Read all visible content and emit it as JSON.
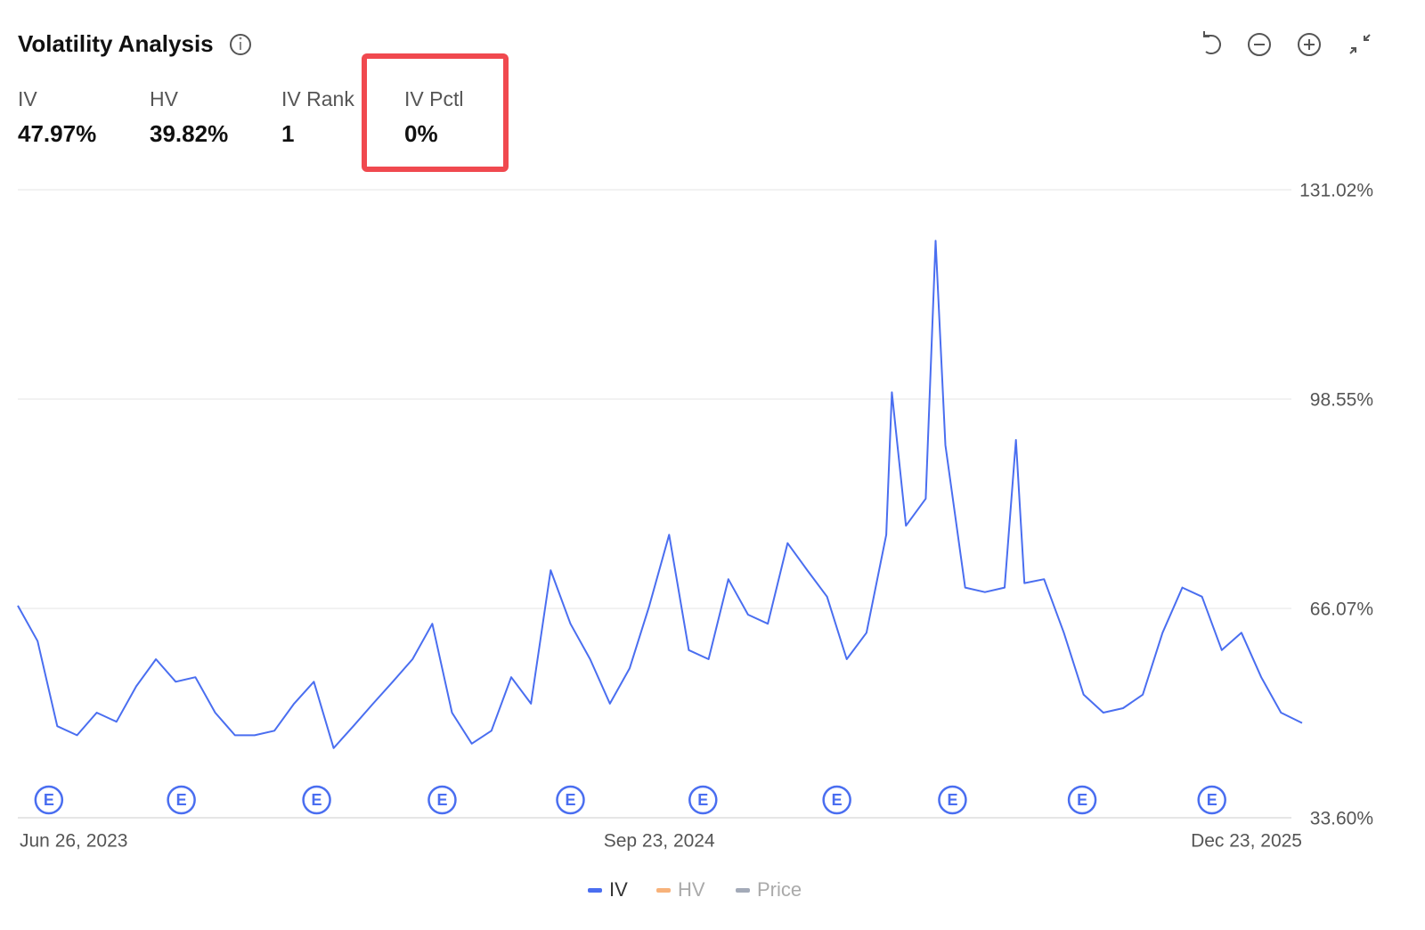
{
  "header": {
    "title": "Volatility Analysis"
  },
  "metrics": [
    {
      "label": "IV",
      "value": "47.97%"
    },
    {
      "label": "HV",
      "value": "39.82%"
    },
    {
      "label": "IV Rank",
      "value": "1"
    },
    {
      "label": "IV Pctl",
      "value": "0%",
      "highlighted": true
    }
  ],
  "chart_data": {
    "type": "line",
    "x": [
      "2023-06-26",
      "2023-07-10",
      "2023-07-24",
      "2023-08-07",
      "2023-08-21",
      "2023-09-04",
      "2023-09-18",
      "2023-10-02",
      "2023-10-16",
      "2023-10-30",
      "2023-11-13",
      "2023-11-27",
      "2023-12-11",
      "2023-12-25",
      "2024-01-08",
      "2024-01-22",
      "2024-02-05",
      "2024-02-19",
      "2024-03-04",
      "2024-03-18",
      "2024-04-01",
      "2024-04-15",
      "2024-04-29",
      "2024-05-13",
      "2024-05-27",
      "2024-06-10",
      "2024-06-24",
      "2024-07-08",
      "2024-07-22",
      "2024-08-05",
      "2024-08-19",
      "2024-09-02",
      "2024-09-16",
      "2024-09-30",
      "2024-10-14",
      "2024-10-28",
      "2024-11-11",
      "2024-11-25",
      "2024-12-09",
      "2024-12-23",
      "2025-01-06",
      "2025-01-20",
      "2025-02-03",
      "2025-02-17",
      "2025-03-03",
      "2025-03-07",
      "2025-03-17",
      "2025-03-31",
      "2025-04-07",
      "2025-04-14",
      "2025-04-28",
      "2025-05-12",
      "2025-05-26",
      "2025-06-03",
      "2025-06-09",
      "2025-06-23",
      "2025-07-07",
      "2025-07-21",
      "2025-08-04",
      "2025-08-18",
      "2025-09-01",
      "2025-09-15",
      "2025-09-29",
      "2025-10-13",
      "2025-10-27",
      "2025-11-10",
      "2025-11-24",
      "2025-12-08",
      "2025-12-23"
    ],
    "series": [
      {
        "color": "#4a6ef0",
        "values": [
          66.5,
          61.0,
          47.8,
          46.4,
          49.9,
          48.5,
          54.0,
          58.2,
          54.7,
          55.4,
          49.9,
          46.4,
          46.4,
          47.1,
          51.3,
          54.7,
          44.4,
          47.8,
          51.3,
          54.7,
          58.2,
          63.7,
          49.9,
          45.1,
          47.1,
          55.4,
          51.3,
          72.0,
          63.7,
          58.2,
          51.3,
          56.8,
          66.5,
          77.5,
          59.6,
          58.2,
          70.6,
          65.1,
          63.7,
          76.2,
          72.0,
          67.9,
          58.2,
          62.3,
          77.5,
          99.6,
          78.9,
          83.1,
          123.1,
          91.4,
          69.3,
          68.6,
          69.3,
          92.2,
          70.0,
          70.6,
          62.3,
          52.7,
          49.9,
          50.6,
          52.7,
          62.3,
          69.3,
          67.9,
          59.6,
          62.3,
          55.4,
          49.9,
          48.3
        ]
      }
    ],
    "xlim": [
      "2023-06-26",
      "2025-12-23"
    ],
    "xticks": [
      {
        "value": "2023-06-26",
        "label": "Jun 26, 2023"
      },
      {
        "value": "2024-09-23",
        "label": "Sep 23, 2024"
      },
      {
        "value": "2025-12-23",
        "label": "Dec 23, 2025"
      }
    ],
    "ylim": [
      33.6,
      131.02
    ],
    "yticks": [
      {
        "value": 33.6,
        "label": "33.60%"
      },
      {
        "value": 66.07,
        "label": "66.07%"
      },
      {
        "value": 98.55,
        "label": "98.55%"
      },
      {
        "value": 131.02,
        "label": "131.02%"
      }
    ],
    "grid": true,
    "events": [
      {
        "x": "2023-07-18",
        "label": "E"
      },
      {
        "x": "2023-10-20",
        "label": "E"
      },
      {
        "x": "2024-01-24",
        "label": "E"
      },
      {
        "x": "2024-04-22",
        "label": "E"
      },
      {
        "x": "2024-07-22",
        "label": "E"
      },
      {
        "x": "2024-10-24",
        "label": "E"
      },
      {
        "x": "2025-01-27",
        "label": "E"
      },
      {
        "x": "2025-04-19",
        "label": "E"
      },
      {
        "x": "2025-07-20",
        "label": "E"
      },
      {
        "x": "2025-10-20",
        "label": "E"
      }
    ],
    "legend": [
      {
        "name": "IV",
        "color": "#4a6ef0",
        "active": true
      },
      {
        "name": "HV",
        "color": "#f7b27a",
        "active": false
      },
      {
        "name": "Price",
        "color": "#a3aab8",
        "active": false
      }
    ]
  }
}
